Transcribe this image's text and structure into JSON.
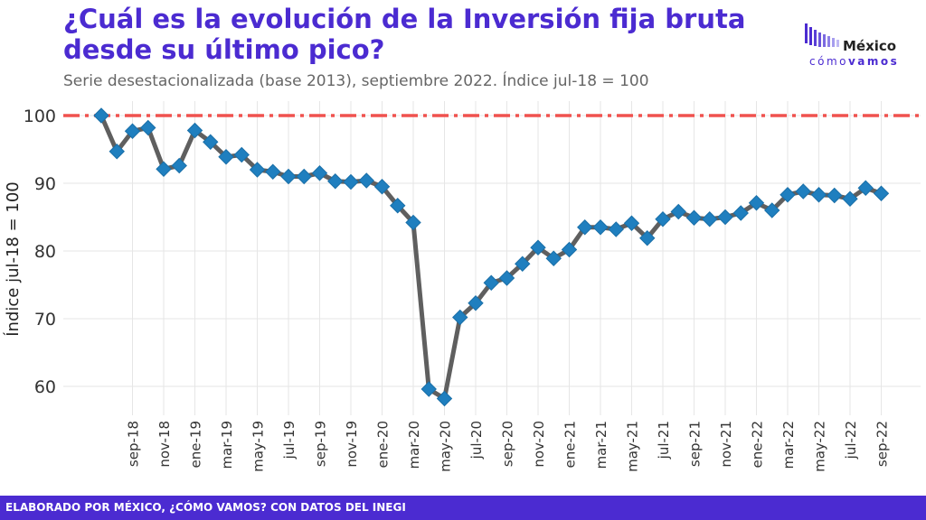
{
  "header": {
    "title": "¿Cuál es la evolución de la Inversión fija bruta desde su último pico?",
    "subtitle": "Serie desestacionalizada (base 2013), septiembre 2022. Índice jul-18 = 100"
  },
  "logo": {
    "word": "México",
    "sub_a": "cómo",
    "sub_b": "vamos"
  },
  "footer": {
    "text": "ELABORADO POR MÉXICO, ¿CÓMO VAMOS? CON DATOS DEL INEGI"
  },
  "colors": {
    "accent": "#4b2bd1",
    "line": "#5f5f5f",
    "marker": "#1f7fbf",
    "reference": "#f0524f",
    "grid": "#e6e6e6"
  },
  "chart_data": {
    "type": "line",
    "title": "¿Cuál es la evolución de la Inversión fija bruta desde su último pico?",
    "subtitle": "Serie desestacionalizada (base 2013), septiembre 2022. Índice jul-18 = 100",
    "xlabel": "",
    "ylabel": "Índice jul-18 = 100",
    "ylim": [
      56,
      101
    ],
    "yticks": [
      60,
      70,
      80,
      90,
      100
    ],
    "grid": true,
    "reference_line": {
      "y": 100,
      "style": "dash-dot"
    },
    "x": [
      "jul-18",
      "ago-18",
      "sep-18",
      "oct-18",
      "nov-18",
      "dic-18",
      "ene-19",
      "feb-19",
      "mar-19",
      "abr-19",
      "may-19",
      "jun-19",
      "jul-19",
      "ago-19",
      "sep-19",
      "oct-19",
      "nov-19",
      "dic-19",
      "ene-20",
      "feb-20",
      "mar-20",
      "abr-20",
      "may-20",
      "jun-20",
      "jul-20",
      "ago-20",
      "sep-20",
      "oct-20",
      "nov-20",
      "dic-20",
      "ene-21",
      "feb-21",
      "mar-21",
      "abr-21",
      "may-21",
      "jun-21",
      "jul-21",
      "ago-21",
      "sep-21",
      "oct-21",
      "nov-21",
      "dic-21",
      "ene-22",
      "feb-22",
      "mar-22",
      "abr-22",
      "may-22",
      "jun-22",
      "jul-22",
      "ago-22",
      "sep-22"
    ],
    "xtick_labels": [
      "sep-18",
      "nov-18",
      "ene-19",
      "mar-19",
      "may-19",
      "jul-19",
      "sep-19",
      "nov-19",
      "ene-20",
      "mar-20",
      "may-20",
      "jul-20",
      "sep-20",
      "nov-20",
      "ene-21",
      "mar-21",
      "may-21",
      "jul-21",
      "sep-21",
      "nov-21",
      "ene-22",
      "mar-22",
      "may-22",
      "jul-22",
      "sep-22"
    ],
    "series": [
      {
        "values": [
          100,
          94.7,
          97.7,
          98.2,
          92.1,
          92.6,
          97.8,
          96.1,
          93.9,
          94.2,
          92.0,
          91.7,
          91.0,
          91.0,
          91.5,
          90.3,
          90.2,
          90.4,
          89.5,
          86.7,
          84.2,
          59.6,
          58.2,
          70.2,
          72.3,
          75.3,
          76.0,
          78.1,
          80.5,
          78.9,
          80.2,
          83.5,
          83.5,
          83.2,
          84.1,
          81.9,
          84.7,
          85.8,
          84.9,
          84.7,
          85.0,
          85.6,
          87.1,
          86.0,
          88.3,
          88.8,
          88.3,
          88.2,
          87.7,
          89.3,
          88.5
        ]
      }
    ]
  }
}
